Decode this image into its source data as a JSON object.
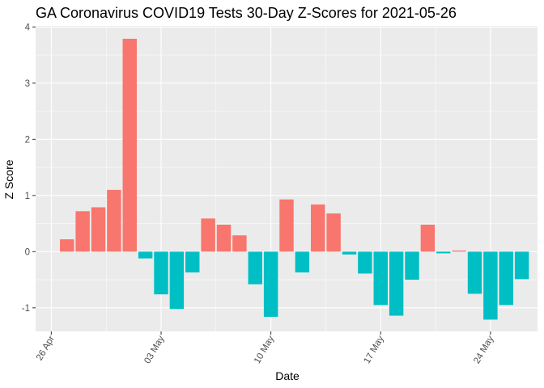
{
  "chart_data": {
    "type": "bar",
    "title": "GA Coronavirus COVID19 Tests 30-Day Z-Scores for 2021-05-26",
    "xlabel": "Date",
    "ylabel": "Z Score",
    "ylim": [
      -1.42,
      4.02
    ],
    "y_ticks": [
      -1,
      0,
      1,
      2,
      3,
      4
    ],
    "x_ticks": [
      {
        "label": "26 Apr",
        "day": 0
      },
      {
        "label": "03 May",
        "day": 7
      },
      {
        "label": "10 May",
        "day": 14
      },
      {
        "label": "17 May",
        "day": 21
      },
      {
        "label": "24 May",
        "day": 28
      }
    ],
    "x_day_range": [
      -1,
      31
    ],
    "fill_rule": "positive values use positive color, negative values use negative color",
    "colors": {
      "positive": "#F8766D",
      "negative": "#00BFC4",
      "panel": "#EBEBEB",
      "grid": "#FFFFFF",
      "tick": "#333333"
    },
    "categories": [
      "2021-04-27",
      "2021-04-28",
      "2021-04-29",
      "2021-04-30",
      "2021-05-01",
      "2021-05-02",
      "2021-05-03",
      "2021-05-04",
      "2021-05-05",
      "2021-05-06",
      "2021-05-07",
      "2021-05-08",
      "2021-05-09",
      "2021-05-10",
      "2021-05-11",
      "2021-05-12",
      "2021-05-13",
      "2021-05-14",
      "2021-05-15",
      "2021-05-16",
      "2021-05-17",
      "2021-05-18",
      "2021-05-19",
      "2021-05-20",
      "2021-05-21",
      "2021-05-22",
      "2021-05-23",
      "2021-05-24",
      "2021-05-25",
      "2021-05-26"
    ],
    "values": [
      0.22,
      0.72,
      0.79,
      1.1,
      3.79,
      -0.12,
      -0.76,
      -1.02,
      -0.37,
      0.59,
      0.48,
      0.29,
      -0.58,
      -1.16,
      0.93,
      -0.37,
      0.84,
      0.68,
      -0.05,
      -0.39,
      -0.95,
      -1.14,
      -0.5,
      0.48,
      -0.03,
      0.02,
      -0.75,
      -1.21,
      -0.95,
      -0.49
    ]
  }
}
